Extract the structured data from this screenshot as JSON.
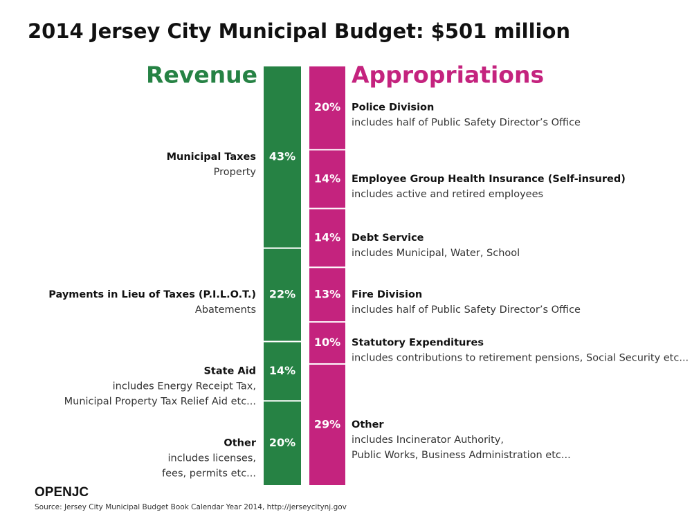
{
  "title": "2014 Jersey City Municipal Budget:  $501 million",
  "chart_data": [
    {
      "type": "stacked",
      "title": "Revenue",
      "color": "#268244",
      "categories": [
        "Municipal Taxes",
        "Payments in Lieu of Taxes (P.I.L.O.T.)",
        "State Aid",
        "Other"
      ],
      "notes": [
        [
          "Property"
        ],
        [
          "Abatements"
        ],
        [
          "includes Energy Receipt Tax,",
          "Municipal Property Tax Relief Aid etc..."
        ],
        [
          "includes licenses,",
          "fees, permits etc..."
        ]
      ],
      "values": [
        43,
        22,
        14,
        20
      ],
      "value_labels": [
        "43%",
        "22%",
        "14%",
        "20%"
      ]
    },
    {
      "type": "stacked",
      "title": "Appropriations",
      "color": "#c4237e",
      "categories": [
        "Police Division",
        "Employee Group Health Insurance (Self-insured)",
        "Debt Service",
        "Fire Division",
        "Statutory Expenditures",
        "Other"
      ],
      "notes": [
        [
          "includes half of Public Safety Director’s Office"
        ],
        [
          "includes active and retired employees"
        ],
        [
          "includes Municipal, Water, School"
        ],
        [
          "includes half of Public Safety Director’s Office"
        ],
        [
          "includes contributions to retirement pensions, Social Security etc..."
        ],
        [
          "includes Incinerator Authority,",
          "Public Works, Business Administration etc..."
        ]
      ],
      "values": [
        20,
        14,
        14,
        13,
        10,
        29
      ],
      "value_labels": [
        "20%",
        "14%",
        "14%",
        "13%",
        "10%",
        "29%"
      ]
    }
  ],
  "brand": "OPENJC",
  "source": "Source: Jersey City Municipal Budget Book Calendar Year 2014, http://jerseycitynj.gov"
}
